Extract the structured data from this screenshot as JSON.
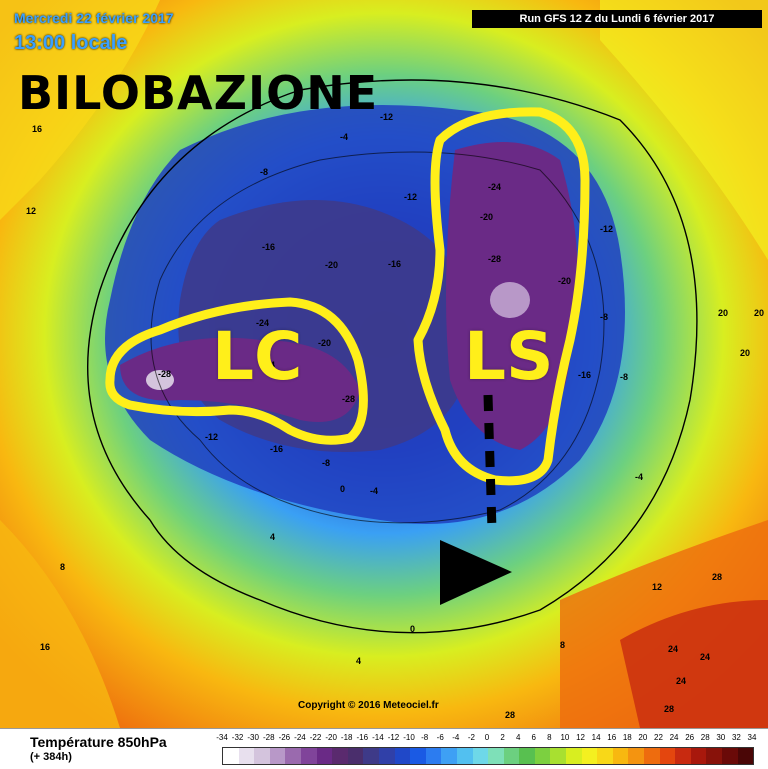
{
  "header": {
    "date": "Mercredi 22 février 2017",
    "time": "13:00 locale",
    "run": "Run GFS 12 Z du Lundi 6 février 2017"
  },
  "headline": "BILOBAZIONE",
  "annotations": {
    "left_lobe": "LC",
    "right_lobe": "LS",
    "highlight_color": "#ffef1a",
    "arrow_color": "#000000"
  },
  "isotherm_labels": [
    "-4",
    "-8",
    "-12",
    "-16",
    "-20",
    "-24",
    "-28",
    "-20",
    "-24",
    "-28",
    "-16",
    "-12",
    "-8",
    "-4",
    "0",
    "4",
    "8",
    "12",
    "16",
    "20",
    "24",
    "28",
    "-24",
    "-20",
    "-28",
    "-16",
    "-12",
    "-8",
    "-12",
    "-16",
    "-20",
    "-8",
    "-4",
    "0",
    "4",
    "8",
    "12",
    "16",
    "20",
    "24",
    "28",
    "28",
    "24",
    "20"
  ],
  "copyright": "Copyright © 2016 Meteociel.fr",
  "legend": {
    "title": "Température 850hPa",
    "subtitle": "(+ 384h)",
    "ticks": [
      "-34",
      "-32",
      "-30",
      "-28",
      "-26",
      "-24",
      "-22",
      "-20",
      "-18",
      "-16",
      "-14",
      "-12",
      "-10",
      "-8",
      "-6",
      "-4",
      "-2",
      "0",
      "2",
      "4",
      "6",
      "8",
      "10",
      "12",
      "14",
      "16",
      "18",
      "20",
      "22",
      "24",
      "26",
      "28",
      "30",
      "32",
      "34"
    ],
    "colors": [
      "#ffffff",
      "#e8e0ee",
      "#d4c4dd",
      "#b898c8",
      "#9a6aae",
      "#80449a",
      "#6a2a86",
      "#5a2a6e",
      "#4a2e6c",
      "#3e3a88",
      "#3040a8",
      "#2048c8",
      "#1a5ae4",
      "#2c7cf0",
      "#3ea0f4",
      "#52c0f0",
      "#6ed8e8",
      "#7ee0b8",
      "#6cd080",
      "#58c050",
      "#7cd040",
      "#a8e030",
      "#d8ee20",
      "#f4f020",
      "#f8d818",
      "#f8b810",
      "#f49410",
      "#ee6c0e",
      "#e4460e",
      "#c82a10",
      "#a8180c",
      "#88120a",
      "#6a0a08",
      "#4a0606"
    ]
  }
}
